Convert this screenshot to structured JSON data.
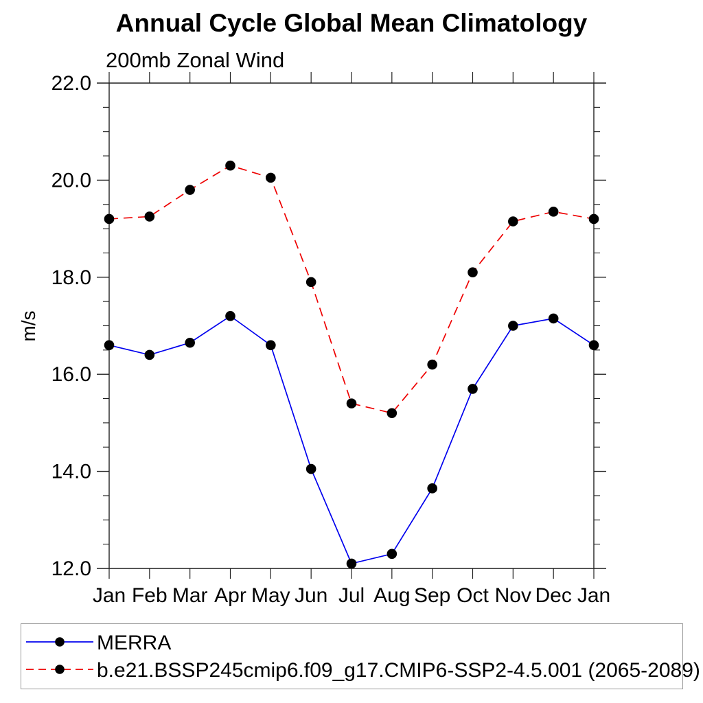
{
  "title": "Annual Cycle Global Mean Climatology",
  "subtitle": "200mb Zonal Wind",
  "ylabel": "m/s",
  "chart_data": {
    "type": "line",
    "categories": [
      "Jan",
      "Feb",
      "Mar",
      "Apr",
      "May",
      "Jun",
      "Jul",
      "Aug",
      "Sep",
      "Oct",
      "Nov",
      "Dec",
      "Jan"
    ],
    "xlabel": "",
    "ylabel": "m/s",
    "ylim": [
      12.0,
      22.0
    ],
    "ytick_major_interval": 2.0,
    "ytick_minor_interval": 0.5,
    "ytick_labels": [
      "12.0",
      "14.0",
      "16.0",
      "18.0",
      "20.0",
      "22.0"
    ],
    "grid": false,
    "legend_position": "bottom-left-box",
    "axis_color": "#1f1f1f",
    "marker_radius": 7.3,
    "series": [
      {
        "name": "MERRA",
        "color": "#0000ee",
        "line_style": "solid",
        "marker": "circle",
        "marker_color": "#000000",
        "values": [
          16.6,
          16.4,
          16.65,
          17.2,
          16.6,
          14.05,
          12.1,
          12.3,
          13.65,
          15.7,
          17.0,
          17.15,
          16.6
        ]
      },
      {
        "name": "b.e21.BSSP245cmip6.f09_g17.CMIP6-SSP2-4.5.001 (2065-2089)",
        "color": "#ee0000",
        "line_style": "dashed",
        "marker": "circle",
        "marker_color": "#000000",
        "values": [
          19.2,
          19.25,
          19.8,
          20.3,
          20.05,
          17.9,
          15.4,
          15.2,
          16.2,
          18.1,
          19.15,
          19.35,
          19.2
        ]
      }
    ]
  }
}
